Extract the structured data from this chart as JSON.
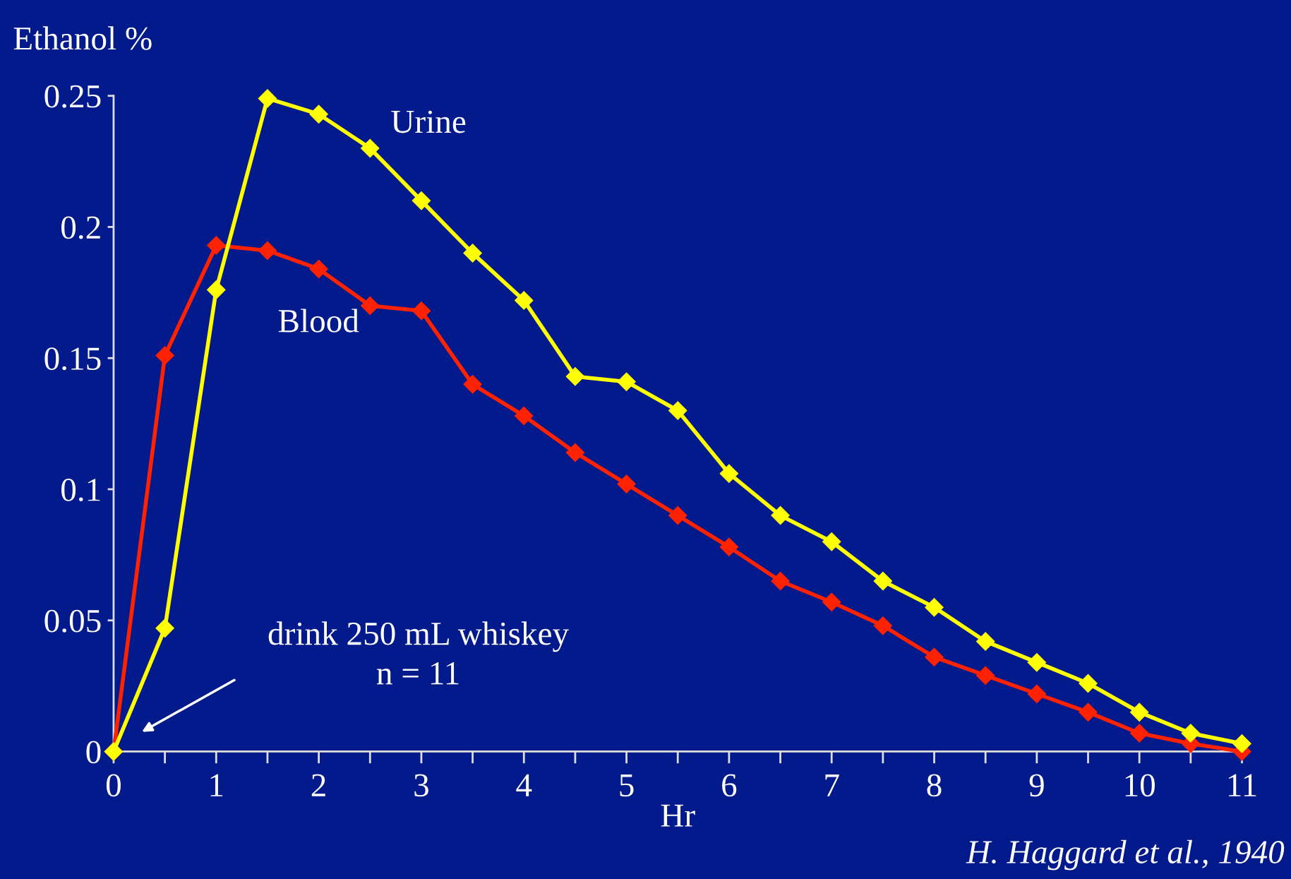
{
  "chart_data": {
    "type": "line",
    "xlabel": "Hr",
    "ylabel": "Ethanol %",
    "x": [
      0,
      0.5,
      1,
      1.5,
      2,
      2.5,
      3,
      3.5,
      4,
      4.5,
      5,
      5.5,
      6,
      6.5,
      7,
      7.5,
      8,
      8.5,
      9,
      9.5,
      10,
      10.5,
      11
    ],
    "series": [
      {
        "name": "Urine",
        "color": "#ffff00",
        "values": [
          0,
          0.047,
          0.176,
          0.249,
          0.243,
          0.23,
          0.21,
          0.19,
          0.172,
          0.143,
          0.141,
          0.13,
          0.106,
          0.09,
          0.08,
          0.065,
          0.055,
          0.042,
          0.034,
          0.026,
          0.015,
          0.007,
          0.003
        ]
      },
      {
        "name": "Blood",
        "color": "#ff2200",
        "values": [
          0,
          0.151,
          0.193,
          0.191,
          0.184,
          0.17,
          0.168,
          0.14,
          0.128,
          0.114,
          0.102,
          0.09,
          0.078,
          0.065,
          0.057,
          0.048,
          0.036,
          0.029,
          0.022,
          0.015,
          0.007,
          0.003,
          0
        ]
      }
    ],
    "xlim": [
      0,
      11
    ],
    "ylim": [
      0,
      0.25
    ],
    "xticks": [
      0,
      1,
      2,
      3,
      4,
      5,
      6,
      7,
      8,
      9,
      10,
      11
    ],
    "yticks": [
      0,
      0.05,
      0.1,
      0.15,
      0.2,
      0.25
    ],
    "marker": "diamond",
    "line_style": "solid",
    "grid": false,
    "legend": false,
    "annotations": [
      "drink 250 mL whiskey\nn = 11",
      "H. Haggard et al., 1940"
    ]
  }
}
